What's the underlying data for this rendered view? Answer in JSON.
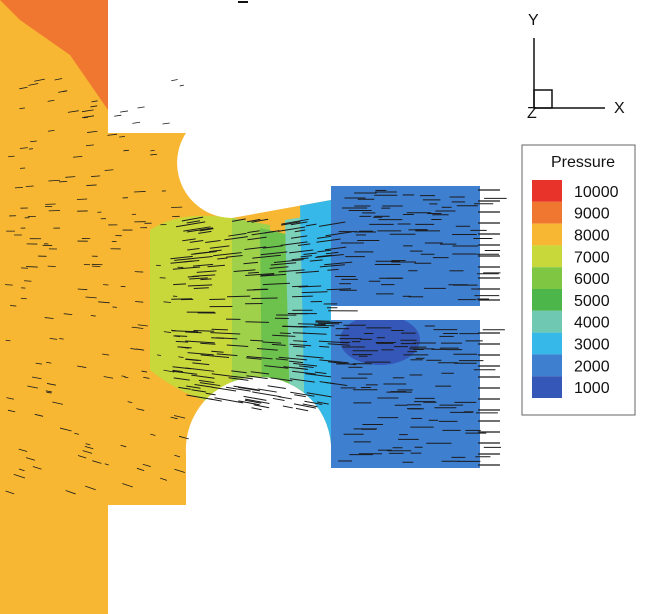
{
  "legend": {
    "title": "Pressure",
    "levels": [
      {
        "value": "10000",
        "color": "#e8332b"
      },
      {
        "value": "9000",
        "color": "#f0772f"
      },
      {
        "value": "8000",
        "color": "#f7b733"
      },
      {
        "value": "7000",
        "color": "#c8d83a"
      },
      {
        "value": "6000",
        "color": "#7fc743"
      },
      {
        "value": "5000",
        "color": "#4cb64a"
      },
      {
        "value": "4000",
        "color": "#6fc8b2"
      },
      {
        "value": "3000",
        "color": "#36b9e8"
      },
      {
        "value": "2000",
        "color": "#3f7fd0"
      },
      {
        "value": "1000",
        "color": "#3557b8"
      }
    ]
  },
  "axes": {
    "y": "Y",
    "x": "X",
    "z": "Z"
  }
}
